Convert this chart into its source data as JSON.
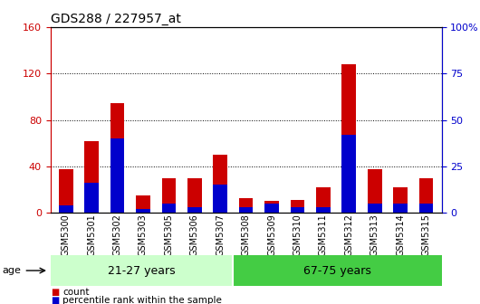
{
  "title": "GDS288 / 227957_at",
  "samples": [
    "GSM5300",
    "GSM5301",
    "GSM5302",
    "GSM5303",
    "GSM5305",
    "GSM5306",
    "GSM5307",
    "GSM5308",
    "GSM5309",
    "GSM5310",
    "GSM5311",
    "GSM5312",
    "GSM5313",
    "GSM5314",
    "GSM5315"
  ],
  "count": [
    38,
    62,
    95,
    15,
    30,
    30,
    50,
    13,
    10,
    11,
    22,
    128,
    38,
    22,
    30
  ],
  "percentile": [
    4,
    16,
    40,
    2,
    5,
    3,
    15,
    3,
    5,
    3,
    3,
    42,
    5,
    5,
    5
  ],
  "group1_label": "21-27 years",
  "group2_label": "67-75 years",
  "group1_count": 7,
  "group2_count": 8,
  "age_label": "age",
  "ylim_left": [
    0,
    160
  ],
  "ylim_right": [
    0,
    100
  ],
  "yticks_left": [
    0,
    40,
    80,
    120,
    160
  ],
  "yticks_right": [
    0,
    25,
    50,
    75,
    100
  ],
  "bar_color_count": "#cc0000",
  "bar_color_percentile": "#0000cc",
  "group1_color": "#ccffcc",
  "group2_color": "#44cc44",
  "left_tick_color": "#cc0000",
  "right_tick_color": "#0000cc",
  "bar_width": 0.55,
  "title_fontsize": 10,
  "tick_fontsize": 8,
  "xtick_fontsize": 7
}
